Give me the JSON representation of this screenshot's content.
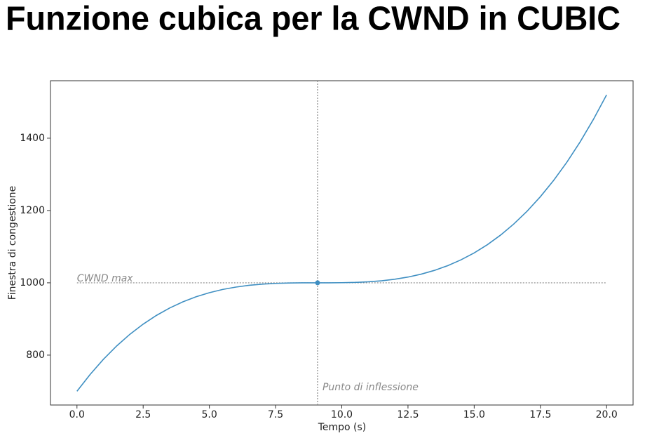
{
  "chart_data": {
    "type": "line",
    "title": "Funzione cubica per la CWND in CUBIC",
    "xlabel": "Tempo (s)",
    "ylabel": "Finestra di congestione",
    "annotations": [
      "CWND max",
      "Punto di inflessione"
    ],
    "x": [
      0,
      0.5,
      1,
      1.5,
      2,
      2.5,
      3,
      3.5,
      4,
      4.5,
      5,
      5.5,
      6,
      6.5,
      7,
      7.5,
      8,
      8.5,
      9,
      9.5,
      10,
      10.5,
      11,
      11.5,
      12,
      12.5,
      13,
      13.5,
      14,
      14.5,
      15,
      15.5,
      16,
      16.5,
      17,
      17.5,
      18,
      18.5,
      19,
      19.5,
      20
    ],
    "series": [
      {
        "name": "CWND",
        "color": "#3f8fc2",
        "values": [
          700,
          746.8,
          788.5,
          825.4,
          857.7,
          885.7,
          909.8,
          930.3,
          947.4,
          961.4,
          972.7,
          981.6,
          988.2,
          993.1,
          996.4,
          998.4,
          999.5,
          999.9,
          1000,
          1000,
          1000.3,
          1001.1,
          1002.8,
          1005.6,
          1009.9,
          1015.9,
          1024,
          1034.4,
          1047.5,
          1063.5,
          1082.7,
          1105.5,
          1132.2,
          1163,
          1198.3,
          1238.3,
          1283.3,
          1333.7,
          1389.8,
          1451.8,
          1520
        ]
      }
    ],
    "inflection": {
      "x": 9.086,
      "y": 1000
    },
    "xlim": [
      -1,
      21
    ],
    "ylim": [
      662,
      1559
    ],
    "xticks": [
      {
        "value": 0,
        "label": "0.0"
      },
      {
        "value": 2.5,
        "label": "2.5"
      },
      {
        "value": 5,
        "label": "5.0"
      },
      {
        "value": 7.5,
        "label": "7.5"
      },
      {
        "value": 10,
        "label": "10.0"
      },
      {
        "value": 12.5,
        "label": "12.5"
      },
      {
        "value": 15,
        "label": "15.0"
      },
      {
        "value": 17.5,
        "label": "17.5"
      },
      {
        "value": 20,
        "label": "20.0"
      }
    ],
    "yticks": [
      800,
      1000,
      1200,
      1400
    ],
    "grid": false
  }
}
